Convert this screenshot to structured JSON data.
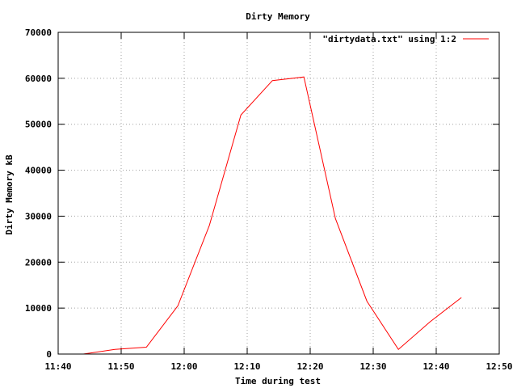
{
  "chart_data": {
    "type": "line",
    "title": "Dirty Memory",
    "xlabel": "Time during test",
    "ylabel": "Dirty Memory kB",
    "xlim": [
      "11:40",
      "12:50"
    ],
    "ylim": [
      0,
      70000
    ],
    "grid": true,
    "legend": "top-right",
    "x_ticks": [
      "11:40",
      "11:50",
      "12:00",
      "12:10",
      "12:20",
      "12:30",
      "12:40",
      "12:50"
    ],
    "y_ticks": [
      0,
      10000,
      20000,
      30000,
      40000,
      50000,
      60000,
      70000
    ],
    "series": [
      {
        "name": "\"dirtydata.txt\" using 1:2",
        "color": "#ff0000",
        "x": [
          "11:44",
          "11:49",
          "11:54",
          "11:59",
          "12:04",
          "12:09",
          "12:14",
          "12:19",
          "12:24",
          "12:29",
          "12:34",
          "12:39",
          "12:44"
        ],
        "y": [
          0,
          1000,
          1500,
          10500,
          28000,
          52000,
          59500,
          60300,
          29500,
          11500,
          1000,
          7000,
          12300
        ]
      }
    ]
  }
}
